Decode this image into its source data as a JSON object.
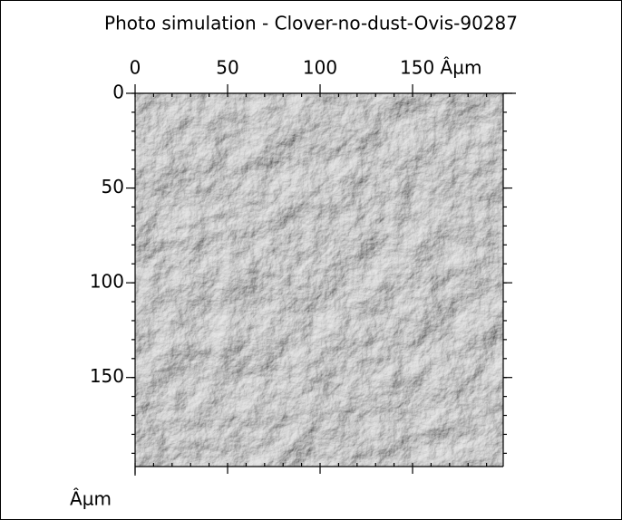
{
  "chart_data": {
    "type": "image",
    "title": "Photo simulation - Clover-no-dust-Ovis-90287",
    "xlim": [
      0,
      199
    ],
    "ylim": [
      0,
      197
    ],
    "xticks": [
      0,
      50,
      100,
      {
        "value": 150,
        "label": "150 Âµm"
      }
    ],
    "yticks": [
      0,
      50,
      100,
      150
    ],
    "ylabel": "Âµm"
  }
}
